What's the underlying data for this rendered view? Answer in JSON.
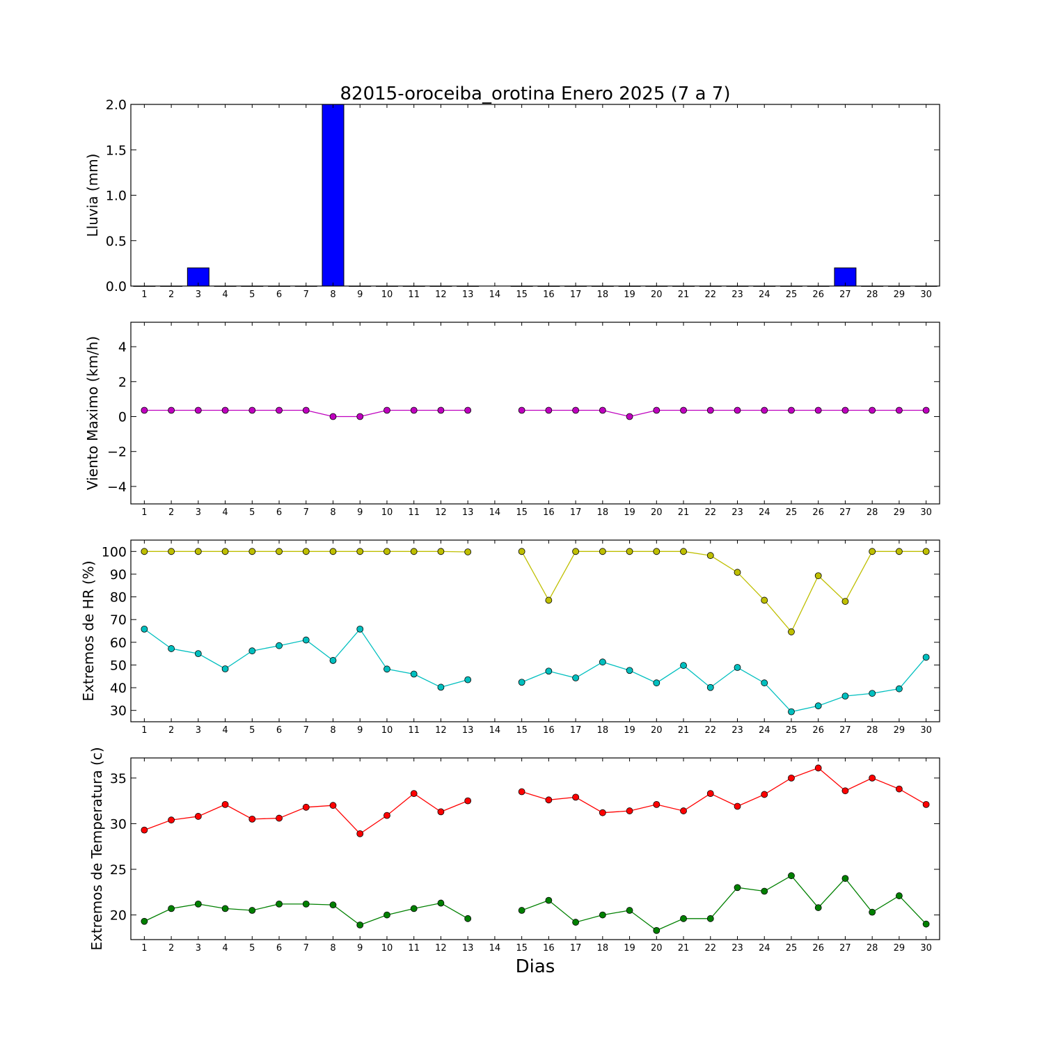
{
  "figure": {
    "title": "82015-oroceiba_orotina Enero 2025  (7 a 7)",
    "xlabel": "Dias",
    "days": [
      "1",
      "2",
      "3",
      "4",
      "5",
      "6",
      "7",
      "8",
      "9",
      "10",
      "11",
      "12",
      "13",
      "14",
      "15",
      "16",
      "17",
      "18",
      "19",
      "20",
      "21",
      "22",
      "23",
      "24",
      "25",
      "26",
      "27",
      "28",
      "29",
      "30"
    ]
  },
  "chart_data": [
    {
      "type": "bar",
      "ylabel": "Lluvia (mm)",
      "ylim": [
        0,
        2.0
      ],
      "yticks": [
        0.0,
        0.5,
        1.0,
        1.5,
        2.0
      ],
      "ytick_labels": [
        "0.0",
        "0.5",
        "1.0",
        "1.5",
        "2.0"
      ],
      "xlim": [
        0.5,
        30.5
      ],
      "categories": [
        1,
        2,
        3,
        4,
        5,
        6,
        7,
        8,
        9,
        10,
        11,
        12,
        13,
        14,
        15,
        16,
        17,
        18,
        19,
        20,
        21,
        22,
        23,
        24,
        25,
        26,
        27,
        28,
        29,
        30
      ],
      "series": [
        {
          "color": "#0000ff",
          "values": [
            0,
            0,
            0.2,
            0,
            0,
            0,
            0,
            2.0,
            0,
            0,
            0,
            0,
            0,
            null,
            0,
            0,
            0,
            0,
            0,
            0,
            0,
            0,
            0,
            0,
            0,
            0,
            0.2,
            0,
            0,
            0
          ]
        }
      ]
    },
    {
      "type": "line",
      "ylabel": "Viento Maximo (km/h)",
      "ylim": [
        -5,
        5.4
      ],
      "yticks": [
        -4,
        -2,
        0,
        2,
        4
      ],
      "ytick_labels": [
        "−4",
        "−2",
        "0",
        "2",
        "4"
      ],
      "xlim": [
        0.5,
        30.5
      ],
      "x": [
        1,
        2,
        3,
        4,
        5,
        6,
        7,
        8,
        9,
        10,
        11,
        12,
        13,
        14,
        15,
        16,
        17,
        18,
        19,
        20,
        21,
        22,
        23,
        24,
        25,
        26,
        27,
        28,
        29,
        30
      ],
      "series": [
        {
          "color": "#bf00bf",
          "values": [
            0.36,
            0.36,
            0.36,
            0.36,
            0.36,
            0.36,
            0.36,
            0,
            0,
            0.36,
            0.36,
            0.36,
            0.36,
            null,
            0.36,
            0.36,
            0.36,
            0.36,
            0,
            0.36,
            0.36,
            0.36,
            0.36,
            0.36,
            0.36,
            0.36,
            0.36,
            0.36,
            0.36,
            0.36
          ]
        }
      ]
    },
    {
      "type": "line",
      "ylabel": "Extremos de HR (%)",
      "ylim": [
        25,
        105
      ],
      "yticks": [
        30,
        40,
        50,
        60,
        70,
        80,
        90,
        100
      ],
      "ytick_labels": [
        "30",
        "40",
        "50",
        "60",
        "70",
        "80",
        "90",
        "100"
      ],
      "xlim": [
        0.5,
        30.5
      ],
      "x": [
        1,
        2,
        3,
        4,
        5,
        6,
        7,
        8,
        9,
        10,
        11,
        12,
        13,
        14,
        15,
        16,
        17,
        18,
        19,
        20,
        21,
        22,
        23,
        24,
        25,
        26,
        27,
        28,
        29,
        30
      ],
      "series": [
        {
          "color": "#bfbf00",
          "values": [
            100,
            100,
            100,
            100,
            100,
            100,
            100,
            100,
            100,
            100,
            100,
            100,
            99.8,
            null,
            100,
            78.5,
            100,
            100,
            100,
            100,
            100,
            98.2,
            90.8,
            78.5,
            64.6,
            89.3,
            78,
            100,
            100,
            100
          ]
        },
        {
          "color": "#00bfbf",
          "values": [
            65.8,
            57.2,
            55,
            48.3,
            56.2,
            58.5,
            61,
            52,
            65.8,
            48.2,
            46,
            40.2,
            43.5,
            null,
            42.4,
            47.3,
            44.3,
            51.3,
            47.6,
            42.1,
            49.8,
            40.1,
            48.9,
            42.1,
            29.4,
            32,
            36.3,
            37.5,
            39.5,
            53.4
          ]
        }
      ]
    },
    {
      "type": "line",
      "ylabel": "Extremos de Temperatura (c)",
      "ylim": [
        17.3,
        37.2
      ],
      "yticks": [
        20,
        25,
        30,
        35
      ],
      "ytick_labels": [
        "20",
        "25",
        "30",
        "35"
      ],
      "xlim": [
        0.5,
        30.5
      ],
      "x": [
        1,
        2,
        3,
        4,
        5,
        6,
        7,
        8,
        9,
        10,
        11,
        12,
        13,
        14,
        15,
        16,
        17,
        18,
        19,
        20,
        21,
        22,
        23,
        24,
        25,
        26,
        27,
        28,
        29,
        30
      ],
      "series": [
        {
          "color": "#ff0000",
          "values": [
            29.3,
            30.4,
            30.8,
            32.1,
            30.5,
            30.6,
            31.8,
            32,
            28.9,
            30.9,
            33.3,
            31.3,
            32.5,
            null,
            33.5,
            32.6,
            32.9,
            31.2,
            31.4,
            32.1,
            31.4,
            33.3,
            31.9,
            33.2,
            35,
            36.1,
            33.6,
            35,
            33.8,
            32.1
          ]
        },
        {
          "color": "#008000",
          "values": [
            19.3,
            20.7,
            21.2,
            20.7,
            20.5,
            21.2,
            21.2,
            21.1,
            18.9,
            20,
            20.7,
            21.3,
            19.6,
            null,
            20.5,
            21.6,
            19.2,
            20,
            20.5,
            18.3,
            19.6,
            19.6,
            23,
            22.6,
            24.3,
            20.8,
            24,
            20.3,
            22.1,
            19
          ]
        }
      ]
    }
  ]
}
